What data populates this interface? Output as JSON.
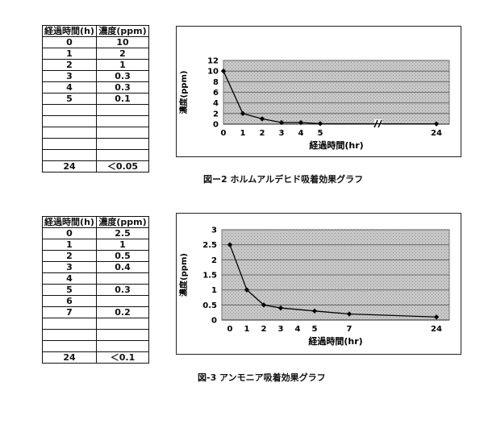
{
  "figure1": {
    "caption": "図ー2 ホルムアルデヒド吸着効果グラフ",
    "table": {
      "headers": [
        "経過時間(h)",
        "濃度(ppm)"
      ],
      "rows": [
        [
          "0",
          "10"
        ],
        [
          "1",
          "2"
        ],
        [
          "2",
          "1"
        ],
        [
          "3",
          "0.3"
        ],
        [
          "4",
          "0.3"
        ],
        [
          "5",
          "0.1"
        ],
        [
          "",
          ""
        ],
        [
          "",
          ""
        ],
        [
          "",
          ""
        ],
        [
          "",
          ""
        ],
        [
          "",
          ""
        ],
        [
          "24",
          "＜0.05"
        ]
      ]
    }
  },
  "figure2": {
    "caption": "図-3 アンモニア吸着効果グラフ",
    "table": {
      "headers": [
        "経過時間(h)",
        "濃度(ppm)"
      ],
      "rows": [
        [
          "0",
          "2.5"
        ],
        [
          "1",
          "1"
        ],
        [
          "2",
          "0.5"
        ],
        [
          "3",
          "0.4"
        ],
        [
          "4",
          ""
        ],
        [
          "5",
          "0.3"
        ],
        [
          "6",
          ""
        ],
        [
          "7",
          "0.2"
        ],
        [
          "",
          ""
        ],
        [
          "",
          ""
        ],
        [
          "",
          ""
        ],
        [
          "24",
          "＜0.1"
        ]
      ]
    }
  },
  "chart_data": [
    {
      "type": "line",
      "xlabel": "経過時間(hr)",
      "ylabel": "濃度(ppm)",
      "ylim": [
        0,
        12
      ],
      "yticks": [
        "0",
        "2",
        "4",
        "6",
        "8",
        "10",
        "12"
      ],
      "x_tick_labels": [
        "0",
        "1",
        "2",
        "3",
        "4",
        "5",
        "24"
      ],
      "axis_break_after": "5",
      "series": [
        {
          "x": [
            "0",
            "1",
            "2",
            "3",
            "4",
            "5",
            "24"
          ],
          "values": [
            10,
            2,
            1,
            0.3,
            0.3,
            0.1,
            0.05
          ]
        }
      ],
      "grid": true,
      "plot_background": "#c8c8c8",
      "line_color": "#000000"
    },
    {
      "type": "line",
      "xlabel": "経過時間(hr)",
      "ylabel": "濃度(ppm)",
      "ylim": [
        0,
        3
      ],
      "yticks": [
        "0",
        "0.5",
        "1",
        "1.5",
        "2",
        "2.5",
        "3"
      ],
      "x_tick_labels": [
        "0",
        "1",
        "2",
        "3",
        "4",
        "5",
        "7",
        "24"
      ],
      "series": [
        {
          "x": [
            "0",
            "1",
            "2",
            "3",
            "5",
            "7",
            "24"
          ],
          "values": [
            2.5,
            1,
            0.5,
            0.4,
            0.3,
            0.2,
            0.1
          ]
        }
      ],
      "grid": true,
      "plot_background": "#c8c8c8",
      "line_color": "#000000"
    }
  ]
}
